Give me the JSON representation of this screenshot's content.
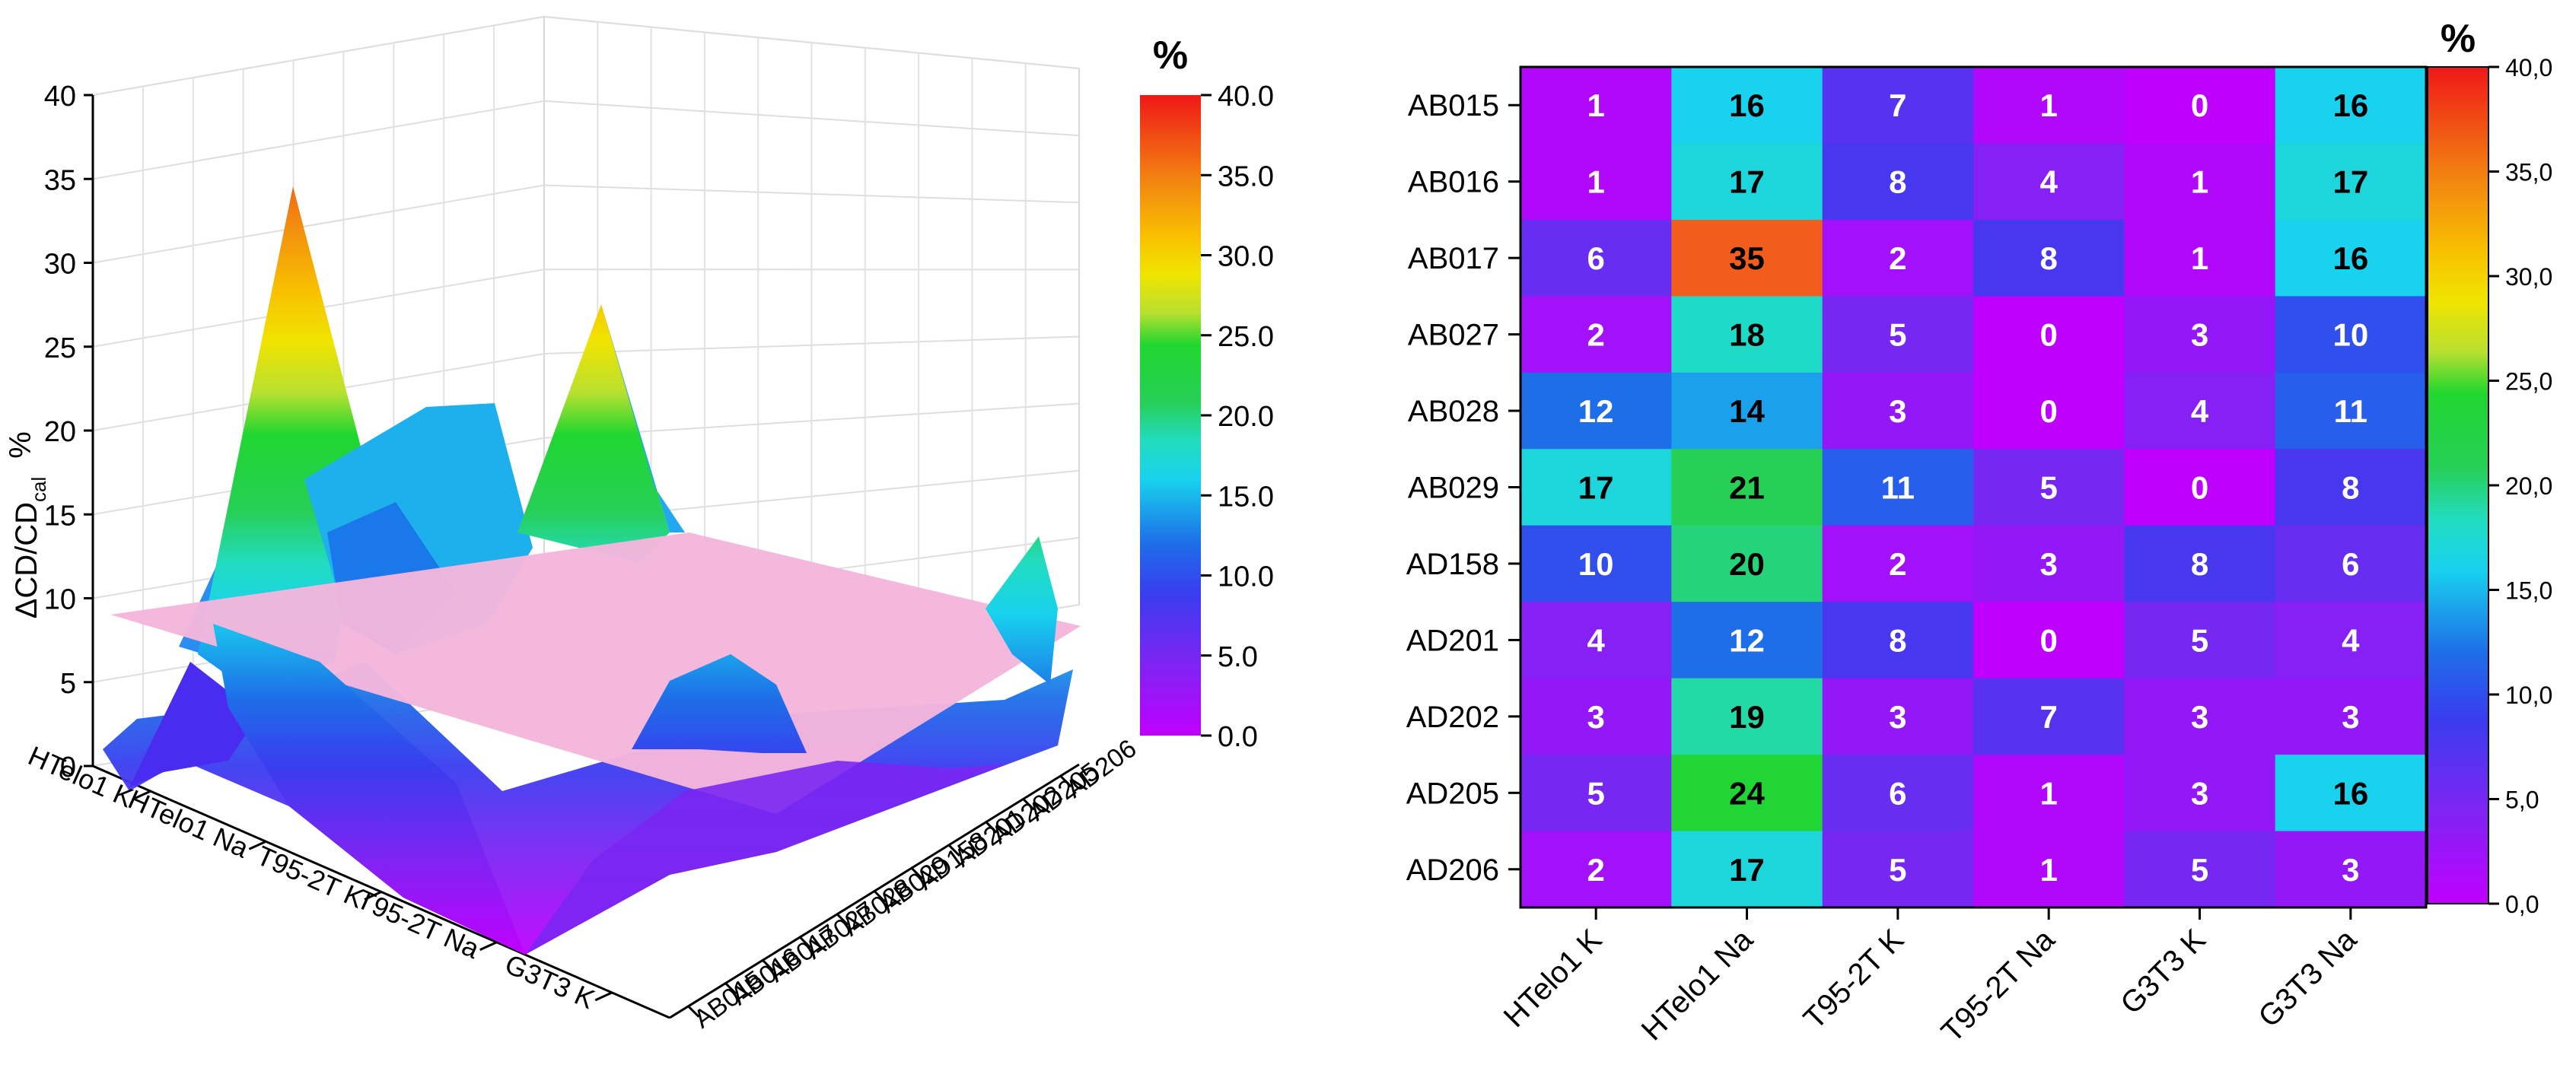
{
  "chart_data": [
    {
      "type": "surface3d",
      "zlabel": "%",
      "zlabel_main": "ΔCD/CD",
      "zlabel_sub": "cal",
      "zlim": [
        0,
        40
      ],
      "zticks": [
        "0",
        "5",
        "10",
        "15",
        "20",
        "25",
        "30",
        "35",
        "40"
      ],
      "x_categories": [
        "HTelo1 K",
        "HTelo1 Na",
        "T95-2T K",
        "T95-2T Na",
        "G3T3 K"
      ],
      "y_categories": [
        "AB015",
        "AB016",
        "AB017",
        "AB027",
        "AB028",
        "AB029",
        "AD158",
        "AD201",
        "AD202",
        "AD205",
        "AD206"
      ],
      "threshold_plane": 10,
      "colorbar": {
        "title": "%",
        "ticks": [
          "0.0",
          "5.0",
          "10.0",
          "15.0",
          "20.0",
          "25.0",
          "30.0",
          "35.0",
          "40.0"
        ],
        "range": [
          0,
          40
        ]
      }
    },
    {
      "type": "heatmap",
      "rows": [
        "AB015",
        "AB016",
        "AB017",
        "AB027",
        "AB028",
        "AB029",
        "AD158",
        "AD201",
        "AD202",
        "AD205",
        "AD206"
      ],
      "columns": [
        "HTelo1 K",
        "HTelo1 Na",
        "T95-2T K",
        "T95-2T Na",
        "G3T3 K",
        "G3T3 Na"
      ],
      "values": [
        [
          1,
          16,
          7,
          1,
          0,
          16
        ],
        [
          1,
          17,
          8,
          4,
          1,
          17
        ],
        [
          6,
          35,
          2,
          8,
          1,
          16
        ],
        [
          2,
          18,
          5,
          0,
          3,
          10
        ],
        [
          12,
          14,
          3,
          0,
          4,
          11
        ],
        [
          17,
          21,
          11,
          5,
          0,
          8
        ],
        [
          10,
          20,
          2,
          3,
          8,
          6
        ],
        [
          4,
          12,
          8,
          0,
          5,
          4
        ],
        [
          3,
          19,
          3,
          7,
          3,
          3
        ],
        [
          5,
          24,
          6,
          1,
          3,
          16
        ],
        [
          2,
          17,
          5,
          1,
          5,
          3
        ]
      ],
      "colorbar": {
        "title": "%",
        "ticks": [
          "0,0",
          "5,0",
          "10,0",
          "15,0",
          "20,0",
          "25,0",
          "30,0",
          "35,0",
          "40,0"
        ],
        "range": [
          0,
          40
        ]
      }
    }
  ]
}
